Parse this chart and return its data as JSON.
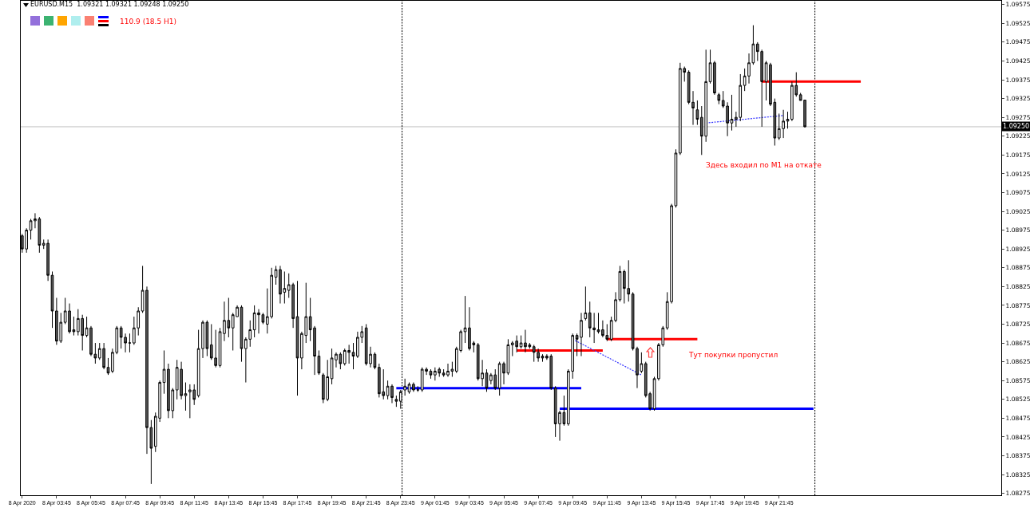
{
  "chart_data": {
    "type": "candlestick",
    "title": "EURUSD.M15  1.09321 1.09321 1.09248 1.09250",
    "annotations": [
      "110.9 (18.5 H1)",
      "Здесь входил по M1 на откате",
      "Тут покупки пропустил"
    ],
    "x": [
      "2020-04-08T01:45",
      "2020-04-08T02:00",
      "2020-04-08T02:15",
      "2020-04-08T02:30",
      "2020-04-08T02:45",
      "2020-04-08T03:00",
      "2020-04-08T03:15",
      "2020-04-08T03:30",
      "2020-04-08T03:45",
      "2020-04-08T04:00",
      "2020-04-08T04:15",
      "2020-04-08T04:30",
      "2020-04-08T04:45",
      "2020-04-08T05:00",
      "2020-04-08T05:15",
      "2020-04-08T05:30",
      "2020-04-08T05:45",
      "2020-04-08T06:00",
      "2020-04-08T06:15",
      "2020-04-08T06:30",
      "2020-04-08T06:45",
      "2020-04-08T07:00",
      "2020-04-08T07:15",
      "2020-04-08T07:30",
      "2020-04-08T07:45",
      "2020-04-08T08:00",
      "2020-04-08T08:15",
      "2020-04-08T08:30",
      "2020-04-08T08:45",
      "2020-04-08T09:00",
      "2020-04-08T09:15",
      "2020-04-08T09:30",
      "2020-04-08T09:45",
      "2020-04-08T10:00",
      "2020-04-08T10:15",
      "2020-04-08T10:30",
      "2020-04-08T10:45",
      "2020-04-08T11:00",
      "2020-04-08T11:15",
      "2020-04-08T11:30",
      "2020-04-08T11:45",
      "2020-04-08T12:00",
      "2020-04-08T12:15",
      "2020-04-08T12:30",
      "2020-04-08T12:45",
      "2020-04-08T13:00",
      "2020-04-08T13:15",
      "2020-04-08T13:30",
      "2020-04-08T13:45",
      "2020-04-08T14:00",
      "2020-04-08T14:15",
      "2020-04-08T14:30",
      "2020-04-08T14:45",
      "2020-04-08T15:00",
      "2020-04-08T15:15",
      "2020-04-08T15:30",
      "2020-04-08T15:45",
      "2020-04-08T16:00",
      "2020-04-08T16:15",
      "2020-04-08T16:30",
      "2020-04-08T16:45",
      "2020-04-08T17:00",
      "2020-04-08T17:15",
      "2020-04-08T17:30",
      "2020-04-08T17:45",
      "2020-04-08T18:00",
      "2020-04-08T18:15",
      "2020-04-08T18:30",
      "2020-04-08T18:45",
      "2020-04-08T19:00",
      "2020-04-08T19:15",
      "2020-04-08T19:30",
      "2020-04-08T19:45",
      "2020-04-08T20:00",
      "2020-04-08T20:15",
      "2020-04-08T20:30",
      "2020-04-08T20:45",
      "2020-04-08T21:00",
      "2020-04-08T21:15",
      "2020-04-08T21:30",
      "2020-04-08T21:45",
      "2020-04-08T22:00",
      "2020-04-08T22:15",
      "2020-04-08T22:30",
      "2020-04-08T22:45",
      "2020-04-08T23:00",
      "2020-04-08T23:15",
      "2020-04-08T23:30",
      "2020-04-08T23:45",
      "2020-04-09T00:00",
      "2020-04-09T00:15",
      "2020-04-09T00:30",
      "2020-04-09T00:45",
      "2020-04-09T01:00",
      "2020-04-09T01:15",
      "2020-04-09T01:30",
      "2020-04-09T01:45",
      "2020-04-09T02:00",
      "2020-04-09T02:15",
      "2020-04-09T02:30",
      "2020-04-09T02:45",
      "2020-04-09T03:00",
      "2020-04-09T03:15",
      "2020-04-09T03:30",
      "2020-04-09T03:45",
      "2020-04-09T04:00",
      "2020-04-09T04:15",
      "2020-04-09T04:30",
      "2020-04-09T04:45",
      "2020-04-09T05:00",
      "2020-04-09T05:15",
      "2020-04-09T05:30",
      "2020-04-09T05:45",
      "2020-04-09T06:00",
      "2020-04-09T06:15",
      "2020-04-09T06:30",
      "2020-04-09T06:45",
      "2020-04-09T07:00",
      "2020-04-09T07:15",
      "2020-04-09T07:30",
      "2020-04-09T07:45",
      "2020-04-09T08:00",
      "2020-04-09T08:15",
      "2020-04-09T08:30",
      "2020-04-09T08:45",
      "2020-04-09T09:00",
      "2020-04-09T09:15",
      "2020-04-09T09:30",
      "2020-04-09T09:45",
      "2020-04-09T10:00",
      "2020-04-09T10:15",
      "2020-04-09T10:30",
      "2020-04-09T10:45",
      "2020-04-09T11:00",
      "2020-04-09T11:15",
      "2020-04-09T11:30",
      "2020-04-09T11:45",
      "2020-04-09T12:00",
      "2020-04-09T12:15",
      "2020-04-09T12:30",
      "2020-04-09T12:45",
      "2020-04-09T13:00",
      "2020-04-09T13:15",
      "2020-04-09T13:30",
      "2020-04-09T13:45",
      "2020-04-09T14:00",
      "2020-04-09T14:15",
      "2020-04-09T14:30",
      "2020-04-09T14:45",
      "2020-04-09T15:00",
      "2020-04-09T15:15",
      "2020-04-09T15:30",
      "2020-04-09T15:45",
      "2020-04-09T16:00",
      "2020-04-09T16:15",
      "2020-04-09T16:30",
      "2020-04-09T16:45",
      "2020-04-09T17:00",
      "2020-04-09T17:15",
      "2020-04-09T17:30",
      "2020-04-09T17:45",
      "2020-04-09T18:00",
      "2020-04-09T18:15",
      "2020-04-09T18:30",
      "2020-04-09T18:45",
      "2020-04-09T19:00",
      "2020-04-09T19:15",
      "2020-04-09T19:30",
      "2020-04-09T19:45",
      "2020-04-09T20:00",
      "2020-04-09T20:15",
      "2020-04-09T20:30",
      "2020-04-09T20:45",
      "2020-04-09T21:00",
      "2020-04-09T21:15",
      "2020-04-09T21:30",
      "2020-04-09T21:45",
      "2020-04-09T22:00",
      "2020-04-09T22:15",
      "2020-04-09T22:30",
      "2020-04-09T22:45",
      "2020-04-09T23:00",
      "2020-04-09T23:15"
    ],
    "ohlc": [
      [
        1.0896,
        1.08965,
        1.08915,
        1.08925
      ],
      [
        1.08925,
        1.0898,
        1.08915,
        1.08975
      ],
      [
        1.08975,
        1.09005,
        1.0895,
        1.09
      ],
      [
        1.09,
        1.0902,
        1.0898,
        1.09005
      ],
      [
        1.09005,
        1.0901,
        1.08915,
        1.08935
      ],
      [
        1.08935,
        1.0895,
        1.08925,
        1.0894
      ],
      [
        1.0894,
        1.0895,
        1.0884,
        1.08855
      ],
      [
        1.08855,
        1.08865,
        1.08715,
        1.0876
      ],
      [
        1.0876,
        1.08795,
        1.0867,
        1.0868
      ],
      [
        1.0868,
        1.08755,
        1.08675,
        1.0873
      ],
      [
        1.0873,
        1.08795,
        1.08725,
        1.0876
      ],
      [
        1.0876,
        1.0878,
        1.087,
        1.08705
      ],
      [
        1.0871,
        1.08745,
        1.08695,
        1.08705
      ],
      [
        1.08705,
        1.08765,
        1.08695,
        1.0874
      ],
      [
        1.0874,
        1.0875,
        1.08655,
        1.08695
      ],
      [
        1.08695,
        1.08745,
        1.0869,
        1.08715
      ],
      [
        1.08715,
        1.0872,
        1.0864,
        1.08645
      ],
      [
        1.08645,
        1.08675,
        1.0862,
        1.08635
      ],
      [
        1.08635,
        1.08675,
        1.0863,
        1.0866
      ],
      [
        1.0866,
        1.08675,
        1.08605,
        1.0861
      ],
      [
        1.0861,
        1.08635,
        1.0859,
        1.08595
      ],
      [
        1.086,
        1.0866,
        1.08595,
        1.0865
      ],
      [
        1.0865,
        1.0872,
        1.08645,
        1.08715
      ],
      [
        1.08715,
        1.0872,
        1.0866,
        1.0869
      ],
      [
        1.0869,
        1.087,
        1.0865,
        1.08675
      ],
      [
        1.08675,
        1.087,
        1.0865,
        1.08675
      ],
      [
        1.08675,
        1.08745,
        1.0867,
        1.08715
      ],
      [
        1.08715,
        1.0877,
        1.08695,
        1.0876
      ],
      [
        1.0876,
        1.0888,
        1.08755,
        1.08815
      ],
      [
        1.08815,
        1.08825,
        1.0838,
        1.0845
      ],
      [
        1.0845,
        1.0847,
        1.083,
        1.08395
      ],
      [
        1.084,
        1.0849,
        1.08385,
        1.0848
      ],
      [
        1.08475,
        1.08575,
        1.08465,
        1.0857
      ],
      [
        1.0857,
        1.08655,
        1.0854,
        1.08605
      ],
      [
        1.08605,
        1.0862,
        1.08475,
        1.08495
      ],
      [
        1.08495,
        1.08555,
        1.08475,
        1.0855
      ],
      [
        1.0855,
        1.0863,
        1.08525,
        1.0861
      ],
      [
        1.08605,
        1.08625,
        1.08525,
        1.08535
      ],
      [
        1.08535,
        1.0857,
        1.08495,
        1.0854
      ],
      [
        1.08545,
        1.08565,
        1.08475,
        1.0855
      ],
      [
        1.0855,
        1.08565,
        1.0851,
        1.08525
      ],
      [
        1.08535,
        1.0871,
        1.0853,
        1.0866
      ],
      [
        1.0866,
        1.08735,
        1.08635,
        1.0873
      ],
      [
        1.0873,
        1.08735,
        1.0864,
        1.0866
      ],
      [
        1.0867,
        1.08725,
        1.0863,
        1.08635
      ],
      [
        1.08635,
        1.0871,
        1.0861,
        1.08615
      ],
      [
        1.08615,
        1.08715,
        1.0861,
        1.08705
      ],
      [
        1.087,
        1.08785,
        1.0868,
        1.08735
      ],
      [
        1.08735,
        1.08795,
        1.0869,
        1.08715
      ],
      [
        1.08715,
        1.08755,
        1.08655,
        1.0875
      ],
      [
        1.08745,
        1.08775,
        1.08745,
        1.0877
      ],
      [
        1.0877,
        1.08775,
        1.08625,
        1.0866
      ],
      [
        1.0866,
        1.0869,
        1.0857,
        1.08685
      ],
      [
        1.08685,
        1.08735,
        1.08665,
        1.0871
      ],
      [
        1.0871,
        1.08775,
        1.0869,
        1.08755
      ],
      [
        1.08755,
        1.08765,
        1.087,
        1.0875
      ],
      [
        1.0875,
        1.08755,
        1.08725,
        1.0873
      ],
      [
        1.08725,
        1.0882,
        1.087,
        1.08745
      ],
      [
        1.08745,
        1.08875,
        1.0874,
        1.08855
      ],
      [
        1.0885,
        1.0888,
        1.0883,
        1.0887
      ],
      [
        1.0887,
        1.0888,
        1.0878,
        1.08805
      ],
      [
        1.0881,
        1.08865,
        1.0878,
        1.0882
      ],
      [
        1.08815,
        1.0886,
        1.08795,
        1.0883
      ],
      [
        1.0883,
        1.08835,
        1.08715,
        1.0874
      ],
      [
        1.08745,
        1.0884,
        1.08535,
        1.08635
      ],
      [
        1.08635,
        1.08705,
        1.08605,
        1.087
      ],
      [
        1.08695,
        1.08835,
        1.08675,
        1.08745
      ],
      [
        1.08745,
        1.08795,
        1.0868,
        1.0871
      ],
      [
        1.08715,
        1.0872,
        1.0859,
        1.0864
      ],
      [
        1.0864,
        1.08655,
        1.0859,
        1.08595
      ],
      [
        1.0859,
        1.08595,
        1.08515,
        1.08525
      ],
      [
        1.08525,
        1.0863,
        1.0852,
        1.08585
      ],
      [
        1.0858,
        1.0866,
        1.08565,
        1.08635
      ],
      [
        1.0863,
        1.0865,
        1.0861,
        1.08645
      ],
      [
        1.08645,
        1.0865,
        1.08605,
        1.0862
      ],
      [
        1.0862,
        1.0866,
        1.08615,
        1.08655
      ],
      [
        1.08655,
        1.0867,
        1.0862,
        1.0865
      ],
      [
        1.0865,
        1.08675,
        1.08605,
        1.0864
      ],
      [
        1.0864,
        1.08705,
        1.08635,
        1.0869
      ],
      [
        1.0869,
        1.0872,
        1.08675,
        1.08705
      ],
      [
        1.08715,
        1.08725,
        1.08615,
        1.0862
      ],
      [
        1.0862,
        1.08665,
        1.0861,
        1.08645
      ],
      [
        1.08645,
        1.0865,
        1.08605,
        1.0861
      ],
      [
        1.0861,
        1.0862,
        1.0853,
        1.0854
      ],
      [
        1.08545,
        1.08605,
        1.08525,
        1.08535
      ],
      [
        1.08535,
        1.08575,
        1.08525,
        1.0856
      ],
      [
        1.0856,
        1.08565,
        1.08515,
        1.0853
      ],
      [
        1.08525,
        1.08535,
        1.08505,
        1.0852
      ],
      [
        1.0852,
        1.0855,
        1.085,
        1.08545
      ],
      [
        1.0855,
        1.0858,
        1.08535,
        1.0856
      ],
      [
        1.08545,
        1.0857,
        1.0854,
        1.08565
      ],
      [
        1.08565,
        1.0857,
        1.08545,
        1.0855
      ],
      [
        1.0855,
        1.0856,
        1.08545,
        1.0855
      ],
      [
        1.0855,
        1.0861,
        1.08545,
        1.08605
      ],
      [
        1.08605,
        1.0861,
        1.0859,
        1.086
      ],
      [
        1.086,
        1.08605,
        1.0858,
        1.0859
      ],
      [
        1.0859,
        1.0861,
        1.08575,
        1.086
      ],
      [
        1.08605,
        1.0861,
        1.08585,
        1.08595
      ],
      [
        1.08595,
        1.08605,
        1.08585,
        1.0859
      ],
      [
        1.0859,
        1.0862,
        1.08585,
        1.086
      ],
      [
        1.086,
        1.08625,
        1.08585,
        1.08605
      ],
      [
        1.086,
        1.08665,
        1.08595,
        1.0866
      ],
      [
        1.08655,
        1.0871,
        1.0865,
        1.08705
      ],
      [
        1.08705,
        1.088,
        1.08675,
        1.08715
      ],
      [
        1.08715,
        1.0877,
        1.08655,
        1.0866
      ],
      [
        1.08675,
        1.0868,
        1.0865,
        1.0867
      ],
      [
        1.0867,
        1.08675,
        1.08575,
        1.0858
      ],
      [
        1.0858,
        1.0863,
        1.0856,
        1.08595
      ],
      [
        1.08595,
        1.08605,
        1.08545,
        1.08555
      ],
      [
        1.08575,
        1.08595,
        1.08565,
        1.0859
      ],
      [
        1.0859,
        1.08605,
        1.0855,
        1.08555
      ],
      [
        1.08555,
        1.08625,
        1.08535,
        1.0862
      ],
      [
        1.0862,
        1.08625,
        1.08565,
        1.08595
      ],
      [
        1.08595,
        1.08685,
        1.0859,
        1.0867
      ],
      [
        1.0867,
        1.0868,
        1.0864,
        1.08675
      ],
      [
        1.0868,
        1.08695,
        1.0865,
        1.08665
      ],
      [
        1.08665,
        1.08695,
        1.0866,
        1.08675
      ],
      [
        1.08675,
        1.0871,
        1.0865,
        1.08665
      ],
      [
        1.0867,
        1.08675,
        1.0866,
        1.08665
      ],
      [
        1.08665,
        1.0867,
        1.08625,
        1.0865
      ],
      [
        1.0865,
        1.0866,
        1.08625,
        1.08635
      ],
      [
        1.0864,
        1.08645,
        1.08625,
        1.08635
      ],
      [
        1.0864,
        1.08645,
        1.0863,
        1.08635
      ],
      [
        1.0864,
        1.08645,
        1.0855,
        1.08555
      ],
      [
        1.08555,
        1.0856,
        1.08425,
        1.0846
      ],
      [
        1.0846,
        1.08495,
        1.08415,
        1.0849
      ],
      [
        1.0849,
        1.08535,
        1.08455,
        1.0846
      ],
      [
        1.0846,
        1.08605,
        1.08455,
        1.086
      ],
      [
        1.086,
        1.087,
        1.0858,
        1.08695
      ],
      [
        1.08695,
        1.087,
        1.0864,
        1.08685
      ],
      [
        1.0869,
        1.08755,
        1.0864,
        1.08735
      ],
      [
        1.0874,
        1.08825,
        1.08735,
        1.08755
      ],
      [
        1.08755,
        1.08785,
        1.0869,
        1.08715
      ],
      [
        1.08715,
        1.08755,
        1.08675,
        1.0871
      ],
      [
        1.0871,
        1.08755,
        1.087,
        1.08705
      ],
      [
        1.0871,
        1.08735,
        1.0869,
        1.08695
      ],
      [
        1.08695,
        1.08725,
        1.0868,
        1.08685
      ],
      [
        1.08685,
        1.08745,
        1.0868,
        1.08735
      ],
      [
        1.08735,
        1.0881,
        1.0873,
        1.0879
      ],
      [
        1.0879,
        1.0888,
        1.08785,
        1.08865
      ],
      [
        1.08865,
        1.0887,
        1.0878,
        1.0882
      ],
      [
        1.0882,
        1.08895,
        1.08785,
        1.08805
      ],
      [
        1.08805,
        1.0881,
        1.08655,
        1.0866
      ],
      [
        1.0866,
        1.08665,
        1.08555,
        1.0859
      ],
      [
        1.086,
        1.0865,
        1.08595,
        1.0862
      ],
      [
        1.0862,
        1.08625,
        1.0853,
        1.08535
      ],
      [
        1.0854,
        1.08545,
        1.08495,
        1.085
      ],
      [
        1.085,
        1.08585,
        1.08495,
        1.0858
      ],
      [
        1.0858,
        1.08675,
        1.08575,
        1.0867
      ],
      [
        1.0867,
        1.0872,
        1.08665,
        1.08715
      ],
      [
        1.08715,
        1.0881,
        1.0871,
        1.08785
      ],
      [
        1.08785,
        1.09045,
        1.0878,
        1.0904
      ],
      [
        1.0904,
        1.0919,
        1.09035,
        1.0918
      ],
      [
        1.0918,
        1.0942,
        1.09175,
        1.09405
      ],
      [
        1.09405,
        1.0941,
        1.0937,
        1.09395
      ],
      [
        1.09395,
        1.094,
        1.0931,
        1.09315
      ],
      [
        1.09315,
        1.09345,
        1.09255,
        1.093
      ],
      [
        1.09295,
        1.0932,
        1.09255,
        1.0927
      ],
      [
        1.09275,
        1.09305,
        1.09175,
        1.09225
      ],
      [
        1.09225,
        1.09455,
        1.0921,
        1.0937
      ],
      [
        1.0937,
        1.09455,
        1.09365,
        1.0942
      ],
      [
        1.0942,
        1.09425,
        1.09335,
        1.0934
      ],
      [
        1.09335,
        1.0934,
        1.0931,
        1.0932
      ],
      [
        1.0932,
        1.09345,
        1.093,
        1.09305
      ],
      [
        1.09305,
        1.09315,
        1.09225,
        1.0926
      ],
      [
        1.0926,
        1.09335,
        1.0924,
        1.0927
      ],
      [
        1.0927,
        1.0929,
        1.0925,
        1.09275
      ],
      [
        1.09275,
        1.0939,
        1.09265,
        1.0936
      ],
      [
        1.0936,
        1.09405,
        1.09345,
        1.09385
      ],
      [
        1.09385,
        1.09445,
        1.09365,
        1.0942
      ],
      [
        1.0942,
        1.0952,
        1.09415,
        1.0947
      ],
      [
        1.0947,
        1.09475,
        1.09425,
        1.0945
      ],
      [
        1.0945,
        1.09455,
        1.0925,
        1.0937
      ],
      [
        1.0937,
        1.09425,
        1.0932,
        1.0942
      ],
      [
        1.09415,
        1.0942,
        1.09305,
        1.0931
      ],
      [
        1.09315,
        1.09325,
        1.092,
        1.0922
      ],
      [
        1.0922,
        1.09285,
        1.09215,
        1.09245
      ],
      [
        1.09245,
        1.09295,
        1.0922,
        1.09265
      ],
      [
        1.09265,
        1.0929,
        1.09245,
        1.0927
      ],
      [
        1.0927,
        1.0937,
        1.09265,
        1.0936
      ],
      [
        1.0936,
        1.09395,
        1.0933,
        1.09335
      ],
      [
        1.09335,
        1.0934,
        1.0932,
        1.0932
      ],
      [
        1.09321,
        1.09321,
        1.09248,
        1.0925
      ]
    ],
    "series": [
      {
        "type": "line",
        "color": "#0000ff",
        "line_style": "solid",
        "x": [
          "2020-04-08T23:30",
          "2020-04-09T10:15"
        ],
        "values": [
          1.08555,
          1.08555
        ]
      },
      {
        "type": "line",
        "color": "#0000ff",
        "line_style": "solid",
        "x": [
          "2020-04-09T09:00",
          "2020-04-09T23:45"
        ],
        "values": [
          1.085,
          1.085
        ]
      },
      {
        "type": "line",
        "color": "#ff0000",
        "line_style": "solid",
        "x": [
          "2020-04-09T06:30",
          "2020-04-09T11:30"
        ],
        "values": [
          1.08655,
          1.08655
        ]
      },
      {
        "type": "line",
        "color": "#ff0000",
        "line_style": "solid",
        "x": [
          "2020-04-09T11:45",
          "2020-04-09T17:00"
        ],
        "values": [
          1.08685,
          1.08685
        ]
      },
      {
        "type": "line",
        "color": "#ff0000",
        "line_style": "solid",
        "x": [
          "2020-04-09T20:45",
          "2020-04-10T02:30"
        ],
        "values": [
          1.0937,
          1.0937
        ]
      },
      {
        "type": "line",
        "color": "#3333ff",
        "line_style": "dotted",
        "x": [
          "2020-04-09T17:30",
          "2020-04-09T22:00"
        ],
        "values": [
          1.0926,
          1.0928
        ]
      },
      {
        "type": "line",
        "color": "#3333ff",
        "line_style": "dotted",
        "x": [
          "2020-04-09T09:45",
          "2020-04-09T13:45"
        ],
        "values": [
          1.08685,
          1.0859
        ]
      }
    ],
    "xlim": [
      "2020-04-08T01:40",
      "2020-04-10T10:40"
    ],
    "xticks": [
      {
        "value": "2020-04-08T01:45",
        "label": "8 Apr 2020"
      },
      {
        "value": "2020-04-08T03:45",
        "label": "8 Apr 03:45"
      },
      {
        "value": "2020-04-08T05:45",
        "label": "8 Apr 05:45"
      },
      {
        "value": "2020-04-08T07:45",
        "label": "8 Apr 07:45"
      },
      {
        "value": "2020-04-08T09:45",
        "label": "8 Apr 09:45"
      },
      {
        "value": "2020-04-08T11:45",
        "label": "8 Apr 11:45"
      },
      {
        "value": "2020-04-08T13:45",
        "label": "8 Apr 13:45"
      },
      {
        "value": "2020-04-08T15:45",
        "label": "8 Apr 15:45"
      },
      {
        "value": "2020-04-08T17:45",
        "label": "8 Apr 17:45"
      },
      {
        "value": "2020-04-08T19:45",
        "label": "8 Apr 19:45"
      },
      {
        "value": "2020-04-08T21:45",
        "label": "8 Apr 21:45"
      },
      {
        "value": "2020-04-08T23:45",
        "label": "8 Apr 23:45"
      },
      {
        "value": "2020-04-09T01:45",
        "label": "9 Apr 01:45"
      },
      {
        "value": "2020-04-09T03:45",
        "label": "9 Apr 03:45"
      },
      {
        "value": "2020-04-09T05:45",
        "label": "9 Apr 05:45"
      },
      {
        "value": "2020-04-09T07:45",
        "label": "9 Apr 07:45"
      },
      {
        "value": "2020-04-09T09:45",
        "label": "9 Apr 09:45"
      },
      {
        "value": "2020-04-09T11:45",
        "label": "9 Apr 11:45"
      },
      {
        "value": "2020-04-09T13:45",
        "label": "9 Apr 13:45"
      },
      {
        "value": "2020-04-09T15:45",
        "label": "9 Apr 15:45"
      },
      {
        "value": "2020-04-09T17:45",
        "label": "9 Apr 17:45"
      },
      {
        "value": "2020-04-09T19:45",
        "label": "9 Apr 19:45"
      },
      {
        "value": "2020-04-09T21:45",
        "label": "9 Apr 21:45"
      }
    ],
    "ylim": [
      1.0827,
      1.09585
    ],
    "yticks": [
      1.09575,
      1.09525,
      1.09475,
      1.09425,
      1.09375,
      1.09325,
      1.09275,
      1.09225,
      1.09175,
      1.09125,
      1.09075,
      1.09025,
      1.08975,
      1.08925,
      1.08875,
      1.08825,
      1.08775,
      1.08725,
      1.08675,
      1.08625,
      1.08575,
      1.08525,
      1.08475,
      1.08425,
      1.08375,
      1.08325,
      1.08275
    ],
    "ref_lines": [
      {
        "axis": "y",
        "value": 1.0925,
        "label": "1.09250",
        "color": "#c0c0c0",
        "line_style": "solid"
      },
      {
        "axis": "x",
        "value": "2020-04-08T23:50",
        "color": "#000000",
        "line_style": "dotted"
      },
      {
        "axis": "x",
        "value": "2020-04-09T23:50",
        "color": "#000000",
        "line_style": "dotted"
      }
    ]
  }
}
